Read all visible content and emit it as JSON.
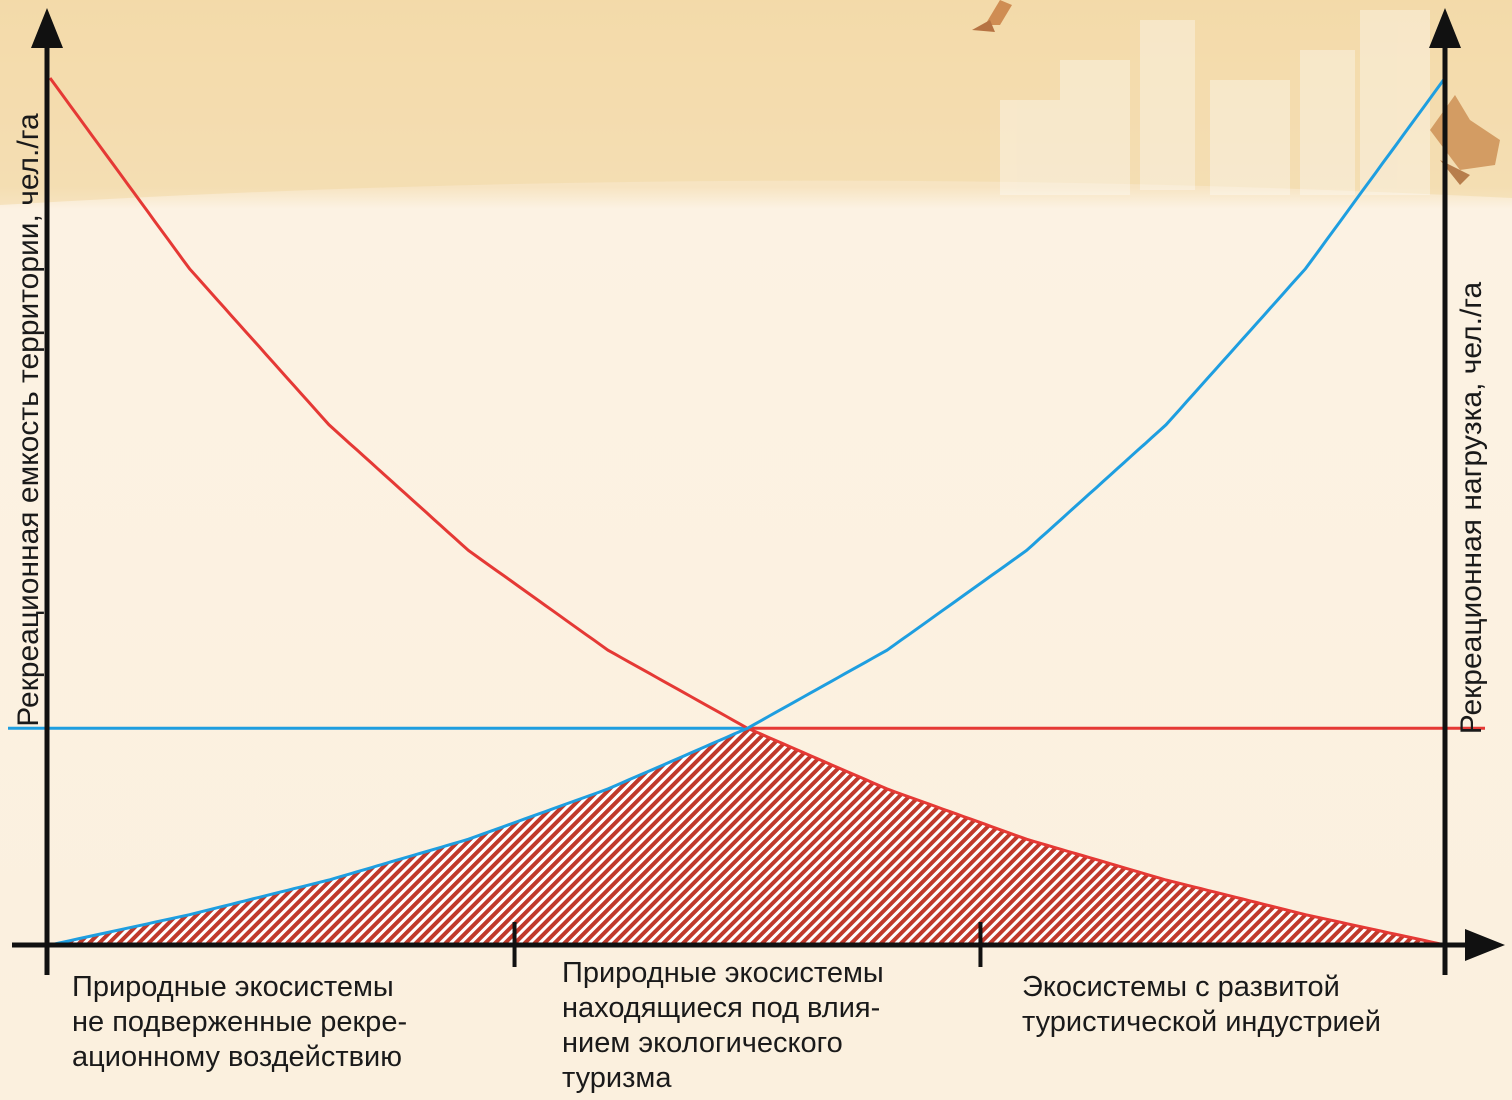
{
  "chart_data": {
    "type": "line",
    "y_left_label": "Рекреационная емкость территории, чел./га",
    "y_right_label": "Рекреационная нагрузка, чел./га",
    "x_label": "",
    "categories": [
      "Природные экосистемы\nне подверженные рекре-\nационному воздействию",
      "Природные экосистемы\nнаходящиеся под влия-\nнием экологического\nтуризма",
      "Экосистемы с развитой\nтуристической индустрией"
    ],
    "series": [
      {
        "key": "capacity",
        "color": "#e53935",
        "x": [
          0,
          0.1,
          0.2,
          0.3,
          0.4,
          0.5,
          0.6,
          0.7,
          0.8,
          0.9,
          1.0
        ],
        "y": [
          1.0,
          0.78,
          0.6,
          0.455,
          0.34,
          0.25,
          0.18,
          0.122,
          0.075,
          0.035,
          0.0
        ]
      },
      {
        "key": "load",
        "color": "#1e9ee0",
        "x": [
          0,
          0.1,
          0.2,
          0.3,
          0.4,
          0.5,
          0.6,
          0.7,
          0.8,
          0.9,
          1.0
        ],
        "y": [
          0.0,
          0.035,
          0.075,
          0.122,
          0.18,
          0.25,
          0.34,
          0.455,
          0.6,
          0.78,
          1.0
        ]
      }
    ],
    "threshold": 0.25,
    "category_boundaries": [
      0,
      0.333,
      0.667,
      1.0
    ],
    "grid": false,
    "legend": "none"
  }
}
